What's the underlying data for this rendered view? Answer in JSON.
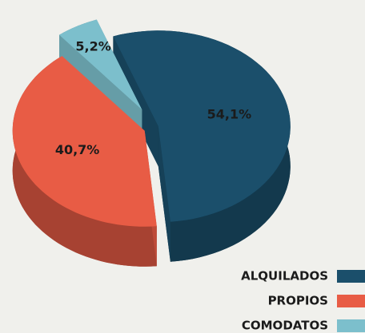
{
  "chart_data": {
    "type": "pie",
    "categories": [
      "ALQUILADOS",
      "PROPIOS",
      "COMODATOS"
    ],
    "values": [
      54.1,
      40.7,
      5.2
    ],
    "value_labels": [
      "54,1%",
      "40,7%",
      "5,2%"
    ],
    "colors": [
      "#1b4f6b",
      "#e85c45",
      "#7cbfcc"
    ],
    "legend": "bottom-right"
  }
}
